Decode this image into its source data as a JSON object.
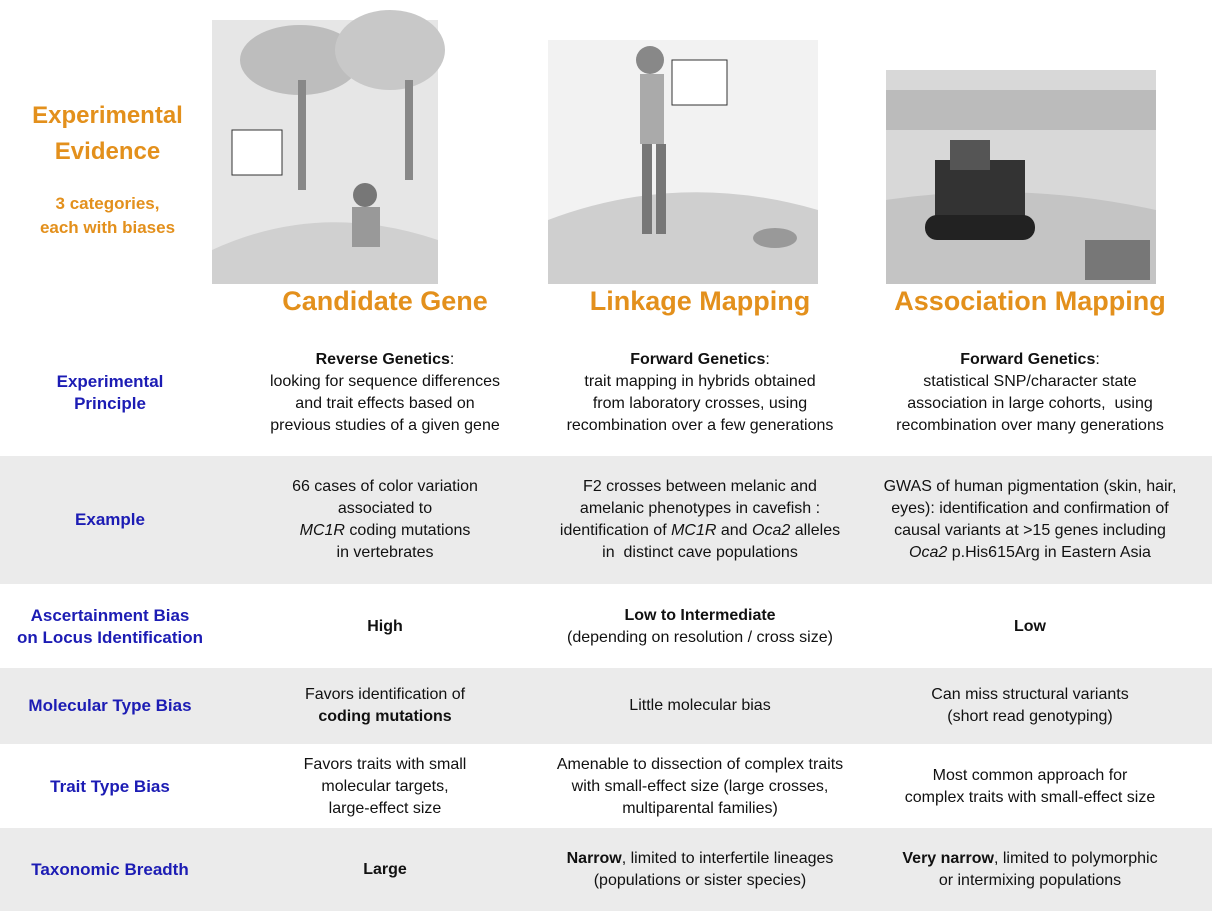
{
  "header": {
    "title": [
      "Experimental",
      "Evidence"
    ],
    "subtitle": [
      "3 categories,",
      "each with biases"
    ]
  },
  "columns": [
    "Candidate Gene",
    "Linkage Mapping",
    "Association Mapping"
  ],
  "rows": [
    {
      "label": [
        "Experimental",
        "Principle"
      ],
      "cells": [
        [
          [
            {
              "t": "Reverse Genetics",
              "b": true
            },
            {
              "t": ":"
            }
          ],
          [
            {
              "t": "looking for sequence differences"
            }
          ],
          [
            {
              "t": "and trait effects based on"
            }
          ],
          [
            {
              "t": "previous studies of a given gene"
            }
          ]
        ],
        [
          [
            {
              "t": "Forward Genetics",
              "b": true
            },
            {
              "t": ":"
            }
          ],
          [
            {
              "t": "trait mapping in hybrids obtained"
            }
          ],
          [
            {
              "t": "from laboratory crosses, using"
            }
          ],
          [
            {
              "t": "recombination over a few generations"
            }
          ]
        ],
        [
          [
            {
              "t": "Forward Genetics",
              "b": true
            },
            {
              "t": ":"
            }
          ],
          [
            {
              "t": "statistical SNP/character state"
            }
          ],
          [
            {
              "t": "association in large cohorts,  using"
            }
          ],
          [
            {
              "t": "recombination over many generations"
            }
          ]
        ]
      ]
    },
    {
      "label": [
        "Example"
      ],
      "cells": [
        [
          [
            {
              "t": "66 cases of color variation"
            }
          ],
          [
            {
              "t": "associated to"
            }
          ],
          [
            {
              "t": "MC1R",
              "i": true
            },
            {
              "t": " coding mutations"
            }
          ],
          [
            {
              "t": "in vertebrates"
            }
          ]
        ],
        [
          [
            {
              "t": "F2 crosses between melanic and"
            }
          ],
          [
            {
              "t": "amelanic phenotypes in cavefish :"
            }
          ],
          [
            {
              "t": "identification of "
            },
            {
              "t": "MC1R",
              "i": true
            },
            {
              "t": " and "
            },
            {
              "t": "Oca2",
              "i": true
            },
            {
              "t": " alleles"
            }
          ],
          [
            {
              "t": "in  distinct cave populations"
            }
          ]
        ],
        [
          [
            {
              "t": "GWAS of human pigmentation (skin, hair,"
            }
          ],
          [
            {
              "t": "eyes): identification and confirmation of"
            }
          ],
          [
            {
              "t": "causal variants at >15 genes including"
            }
          ],
          [
            {
              "t": "Oca2",
              "i": true
            },
            {
              "t": " p.His615Arg in Eastern Asia"
            }
          ]
        ]
      ]
    },
    {
      "label": [
        "Ascertainment Bias",
        "on Locus Identification"
      ],
      "cells": [
        [
          [
            {
              "t": "High",
              "b": true
            }
          ]
        ],
        [
          [
            {
              "t": "Low to Intermediate",
              "b": true
            }
          ],
          [
            {
              "t": "(depending on resolution / cross size)"
            }
          ]
        ],
        [
          [
            {
              "t": "Low",
              "b": true
            }
          ]
        ]
      ]
    },
    {
      "label": [
        "Molecular Type Bias"
      ],
      "cells": [
        [
          [
            {
              "t": "Favors identification of"
            }
          ],
          [
            {
              "t": "coding mutations",
              "b": true
            }
          ]
        ],
        [
          [
            {
              "t": "Little molecular bias"
            }
          ]
        ],
        [
          [
            {
              "t": "Can miss structural variants"
            }
          ],
          [
            {
              "t": "(short read genotyping)"
            }
          ]
        ]
      ]
    },
    {
      "label": [
        "Trait Type Bias"
      ],
      "cells": [
        [
          [
            {
              "t": "Favors traits with small"
            }
          ],
          [
            {
              "t": "molecular targets,"
            }
          ],
          [
            {
              "t": "large-effect size"
            }
          ]
        ],
        [
          [
            {
              "t": "Amenable to dissection of complex traits"
            }
          ],
          [
            {
              "t": "with small-effect size (large crosses,"
            }
          ],
          [
            {
              "t": "multiparental families)"
            }
          ]
        ],
        [
          [
            {
              "t": "Most common approach for"
            }
          ],
          [
            {
              "t": "complex traits with small-effect size"
            }
          ]
        ]
      ]
    },
    {
      "label": [
        "Taxonomic Breadth"
      ],
      "cells": [
        [
          [
            {
              "t": "Large",
              "b": true
            }
          ]
        ],
        [
          [
            {
              "t": "Narrow",
              "b": true
            },
            {
              "t": ", limited to interfertile lineages"
            }
          ],
          [
            {
              "t": "(populations or sister species)"
            }
          ]
        ],
        [
          [
            {
              "t": "Very narrow",
              "b": true
            },
            {
              "t": ", limited to polymorphic"
            }
          ],
          [
            {
              "t": "or intermixing populations"
            }
          ]
        ]
      ]
    }
  ]
}
